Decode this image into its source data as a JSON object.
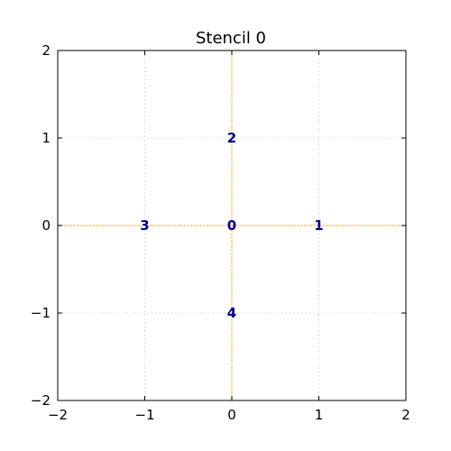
{
  "chart_data": {
    "type": "scatter",
    "title": "Stencil 0",
    "xlabel": "",
    "ylabel": "",
    "xlim": [
      -2,
      2
    ],
    "ylim": [
      -2,
      2
    ],
    "x_ticks": [
      -2,
      -1,
      0,
      1,
      2
    ],
    "y_ticks": [
      -2,
      -1,
      0,
      1,
      2
    ],
    "x_tick_labels": [
      "−2",
      "−1",
      "0",
      "1",
      "2"
    ],
    "y_tick_labels": [
      "−2",
      "−1",
      "0",
      "1",
      "2"
    ],
    "grid": true,
    "reference_lines": [
      {
        "orientation": "horizontal",
        "value": 0
      },
      {
        "orientation": "vertical",
        "value": 0
      }
    ],
    "points": [
      {
        "label": "0",
        "x": 0,
        "y": 0
      },
      {
        "label": "1",
        "x": 1,
        "y": 0
      },
      {
        "label": "2",
        "x": 0,
        "y": 1
      },
      {
        "label": "3",
        "x": -1,
        "y": 0
      },
      {
        "label": "4",
        "x": 0,
        "y": -1
      }
    ]
  },
  "colors": {
    "point_label": "#00008b",
    "reference_line": "#ffa500",
    "grid": "#b0b0b0",
    "axes": "#000000"
  }
}
